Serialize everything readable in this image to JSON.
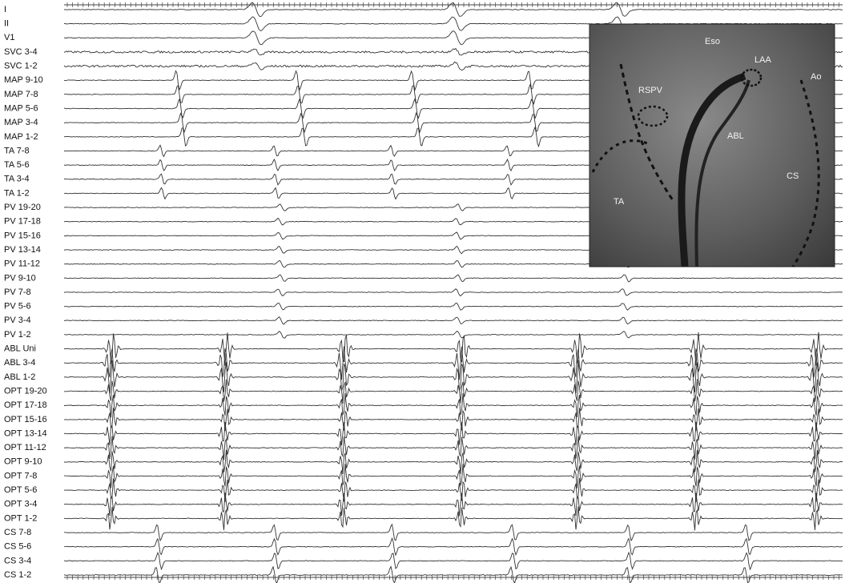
{
  "channels": [
    "I",
    "II",
    "V1",
    "SVC 3-4",
    "SVC 1-2",
    "MAP 9-10",
    "MAP 7-8",
    "MAP 5-6",
    "MAP 3-4",
    "MAP 1-2",
    "TA 7-8",
    "TA 5-6",
    "TA 3-4",
    "TA 1-2",
    "PV 19-20",
    "PV 17-18",
    "PV 15-16",
    "PV 13-14",
    "PV 11-12",
    "PV 9-10",
    "PV 7-8",
    "PV 5-6",
    "PV 3-4",
    "PV 1-2",
    "ABL Uni",
    "ABL 3-4",
    "ABL 1-2",
    "OPT 19-20",
    "OPT 17-18",
    "OPT 15-16",
    "OPT 13-14",
    "OPT 11-12",
    "OPT 9-10",
    "OPT 7-8",
    "OPT 5-6",
    "OPT 3-4",
    "OPT 1-2",
    "CS 7-8",
    "CS 5-6",
    "CS 3-4",
    "CS 1-2"
  ],
  "fluoroscopy": {
    "labels": [
      "Eso",
      "LAA",
      "Ao",
      "RSPV",
      "ABL",
      "CS",
      "TA"
    ]
  }
}
